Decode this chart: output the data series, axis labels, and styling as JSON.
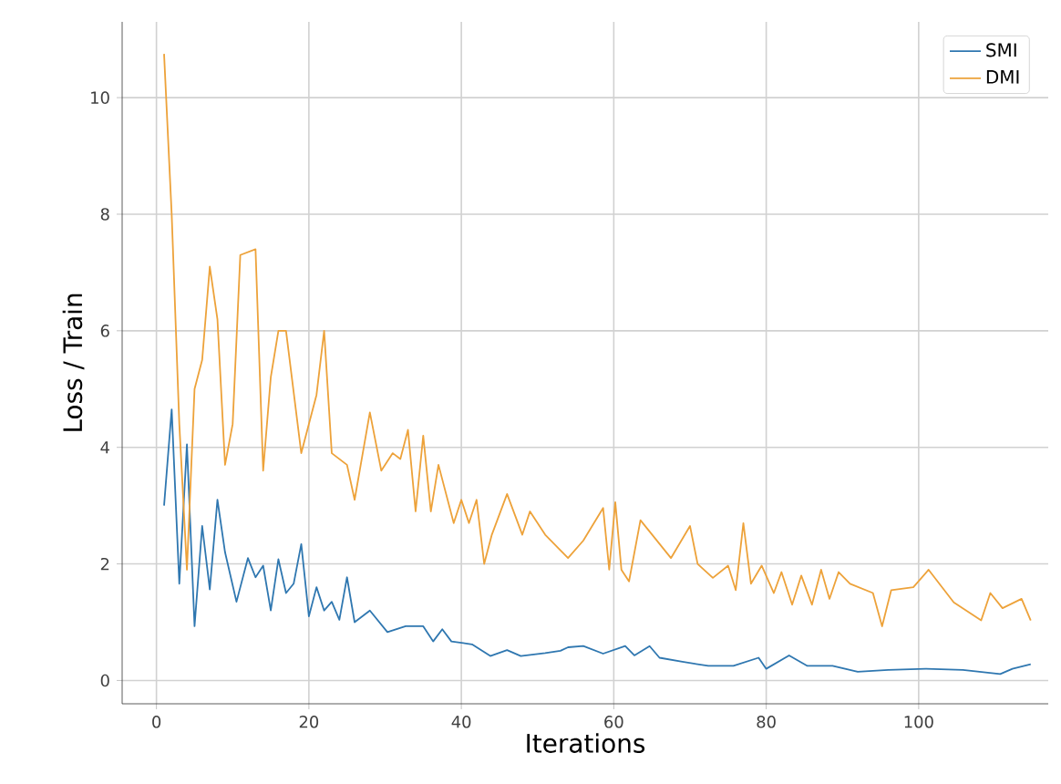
{
  "chart_data": {
    "type": "line",
    "xlabel": "Iterations",
    "ylabel": "Loss / Train",
    "xlim": [
      -4.5,
      117
    ],
    "ylim": [
      -0.4,
      11.3
    ],
    "xticks": [
      0,
      20,
      40,
      60,
      80,
      100
    ],
    "yticks": [
      0,
      2,
      4,
      6,
      8,
      10
    ],
    "grid": true,
    "legend": "top right",
    "series": [
      {
        "name": "SMI",
        "color": "#2f77b0",
        "x": [
          1,
          2,
          3,
          4,
          5,
          6,
          7,
          8,
          9,
          10.5,
          12,
          13,
          14,
          15,
          16,
          17,
          18,
          19,
          20,
          21,
          22,
          23,
          24,
          25,
          26,
          28,
          30.3,
          32.7,
          35,
          36.3,
          37.5,
          38.7,
          41.4,
          43.8,
          46,
          47.8,
          51,
          53,
          54,
          56,
          58.6,
          61.5,
          62.7,
          64.7,
          66,
          69,
          72.4,
          75.7,
          79,
          80,
          83,
          85.4,
          88.7,
          92,
          96,
          100.9,
          105.8,
          110.7,
          112.3,
          114.7
        ],
        "values": [
          3.0,
          4.65,
          1.66,
          4.05,
          0.93,
          2.65,
          1.56,
          3.1,
          2.2,
          1.35,
          2.1,
          1.77,
          1.97,
          1.2,
          2.08,
          1.5,
          1.66,
          2.34,
          1.1,
          1.6,
          1.2,
          1.35,
          1.04,
          1.77,
          1.0,
          1.2,
          0.83,
          0.93,
          0.93,
          0.67,
          0.88,
          0.67,
          0.62,
          0.42,
          0.52,
          0.42,
          0.47,
          0.51,
          0.57,
          0.59,
          0.46,
          0.59,
          0.43,
          0.59,
          0.39,
          0.32,
          0.25,
          0.25,
          0.39,
          0.2,
          0.43,
          0.25,
          0.25,
          0.15,
          0.18,
          0.2,
          0.18,
          0.11,
          0.2,
          0.28
        ]
      },
      {
        "name": "DMI",
        "color": "#eda23a",
        "x": [
          1,
          2,
          3,
          4,
          5,
          6,
          7,
          8,
          9,
          10,
          11,
          13,
          14,
          15,
          16,
          17,
          19,
          21,
          22,
          23,
          25,
          26,
          28,
          29.5,
          31,
          32,
          33,
          34,
          35,
          36,
          37,
          39,
          40,
          41,
          42,
          43,
          44,
          46,
          48,
          49,
          51,
          54,
          56,
          58.6,
          59.4,
          60.2,
          61,
          62,
          63.5,
          67.5,
          70,
          71,
          73,
          75,
          76,
          77,
          78,
          79.4,
          81,
          82,
          83.4,
          84.6,
          86,
          87.2,
          88.3,
          89.5,
          91,
          94,
          95.2,
          96.4,
          99.3,
          101.3,
          104.6,
          108.2,
          109.4,
          111,
          113.5,
          114.7
        ],
        "values": [
          10.75,
          8.0,
          4.4,
          1.9,
          5.0,
          5.5,
          7.1,
          6.2,
          3.7,
          4.4,
          7.3,
          7.4,
          3.6,
          5.2,
          6.0,
          6.0,
          3.9,
          4.9,
          6.0,
          3.9,
          3.7,
          3.1,
          4.6,
          3.6,
          3.9,
          3.8,
          4.3,
          2.9,
          4.2,
          2.9,
          3.7,
          2.7,
          3.1,
          2.7,
          3.1,
          2.0,
          2.5,
          3.2,
          2.5,
          2.9,
          2.5,
          2.1,
          2.4,
          2.96,
          1.9,
          3.06,
          1.9,
          1.7,
          2.75,
          2.1,
          2.65,
          2.0,
          1.76,
          1.97,
          1.55,
          2.7,
          1.66,
          1.97,
          1.5,
          1.86,
          1.3,
          1.8,
          1.3,
          1.9,
          1.4,
          1.86,
          1.66,
          1.5,
          0.93,
          1.55,
          1.6,
          1.9,
          1.34,
          1.03,
          1.5,
          1.24,
          1.4,
          1.03
        ]
      }
    ]
  }
}
